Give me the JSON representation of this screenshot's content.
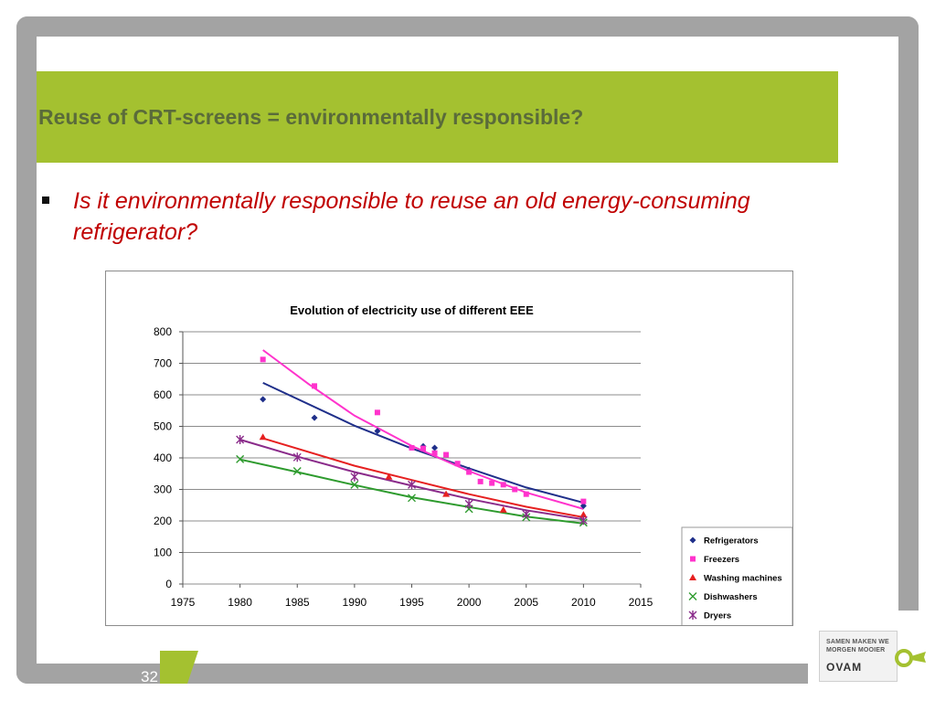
{
  "slide": {
    "title": "Reuse of CRT-screens = environmentally responsible?",
    "bullet": "Is it environmentally responsible to reuse an old energy-consuming refrigerator?",
    "page_number": "32",
    "logo": {
      "line1": "SAMEN MAKEN WE",
      "line2": "MORGEN MOOIER",
      "brand": "OVAM"
    },
    "colors": {
      "title_band": "#a4c130",
      "title_text": "#5a6b3a",
      "bullet_text": "#c00000",
      "frame": "#a3a3a3"
    }
  },
  "chart_data": {
    "type": "scatter",
    "title": "Evolution of electricity use of different EEE",
    "xlabel": "",
    "ylabel": "",
    "xlim": [
      1975,
      2015
    ],
    "ylim": [
      0,
      800
    ],
    "x_ticks": [
      1975,
      1980,
      1985,
      1990,
      1995,
      2000,
      2005,
      2010,
      2015
    ],
    "y_ticks": [
      0,
      100,
      200,
      300,
      400,
      500,
      600,
      700,
      800
    ],
    "grid": "horizontal",
    "legend_position": "bottom-right",
    "series": [
      {
        "name": "Refrigerators",
        "color": "#1f2f8a",
        "marker": "diamond",
        "points": [
          [
            1982,
            586
          ],
          [
            1986.5,
            527
          ],
          [
            1992,
            485
          ],
          [
            1996,
            437
          ],
          [
            1997,
            432
          ],
          [
            2000,
            362
          ],
          [
            2010,
            248
          ]
        ],
        "trend": [
          [
            1982,
            638
          ],
          [
            1990,
            502
          ],
          [
            1995,
            430
          ],
          [
            2000,
            367
          ],
          [
            2005,
            306
          ],
          [
            2010,
            258
          ]
        ]
      },
      {
        "name": "Freezers",
        "color": "#ff33cc",
        "marker": "square",
        "points": [
          [
            1982,
            712
          ],
          [
            1986.5,
            628
          ],
          [
            1992,
            544
          ],
          [
            1995,
            432
          ],
          [
            1996,
            430
          ],
          [
            1997,
            415
          ],
          [
            1998,
            410
          ],
          [
            1999,
            382
          ],
          [
            2000,
            355
          ],
          [
            2001,
            325
          ],
          [
            2002,
            320
          ],
          [
            2003,
            315
          ],
          [
            2004,
            300
          ],
          [
            2005,
            285
          ],
          [
            2010,
            262
          ]
        ],
        "trend": [
          [
            1982,
            742
          ],
          [
            1986,
            634
          ],
          [
            1990,
            534
          ],
          [
            1995,
            438
          ],
          [
            2000,
            358
          ],
          [
            2005,
            290
          ],
          [
            2010,
            238
          ]
        ]
      },
      {
        "name": "Washing machines",
        "color": "#e62020",
        "marker": "triangle",
        "points": [
          [
            1982,
            466
          ],
          [
            1993,
            340
          ],
          [
            1998,
            285
          ],
          [
            2003,
            235
          ],
          [
            2010,
            220
          ]
        ],
        "trend": [
          [
            1982,
            462
          ],
          [
            1990,
            375
          ],
          [
            1995,
            330
          ],
          [
            2000,
            285
          ],
          [
            2005,
            245
          ],
          [
            2010,
            212
          ]
        ]
      },
      {
        "name": "Dishwashers",
        "color": "#2e9b2e",
        "marker": "x",
        "points": [
          [
            1980,
            396
          ],
          [
            1985,
            358
          ],
          [
            1990,
            315
          ],
          [
            1995,
            273
          ],
          [
            2000,
            238
          ],
          [
            2005,
            212
          ],
          [
            2010,
            195
          ]
        ],
        "trend": [
          [
            1980,
            395
          ],
          [
            1985,
            355
          ],
          [
            1990,
            314
          ],
          [
            1995,
            275
          ],
          [
            2000,
            244
          ],
          [
            2005,
            214
          ],
          [
            2010,
            192
          ]
        ]
      },
      {
        "name": "Dryers",
        "color": "#8a2b8a",
        "marker": "asterisk",
        "points": [
          [
            1980,
            458
          ],
          [
            1985,
            402
          ],
          [
            1990,
            340
          ],
          [
            1995,
            315
          ],
          [
            2000,
            254
          ],
          [
            2005,
            222
          ],
          [
            2010,
            202
          ]
        ],
        "trend": [
          [
            1980,
            458
          ],
          [
            1985,
            404
          ],
          [
            1990,
            355
          ],
          [
            1995,
            312
          ],
          [
            2000,
            270
          ],
          [
            2005,
            234
          ],
          [
            2010,
            205
          ]
        ]
      }
    ]
  }
}
